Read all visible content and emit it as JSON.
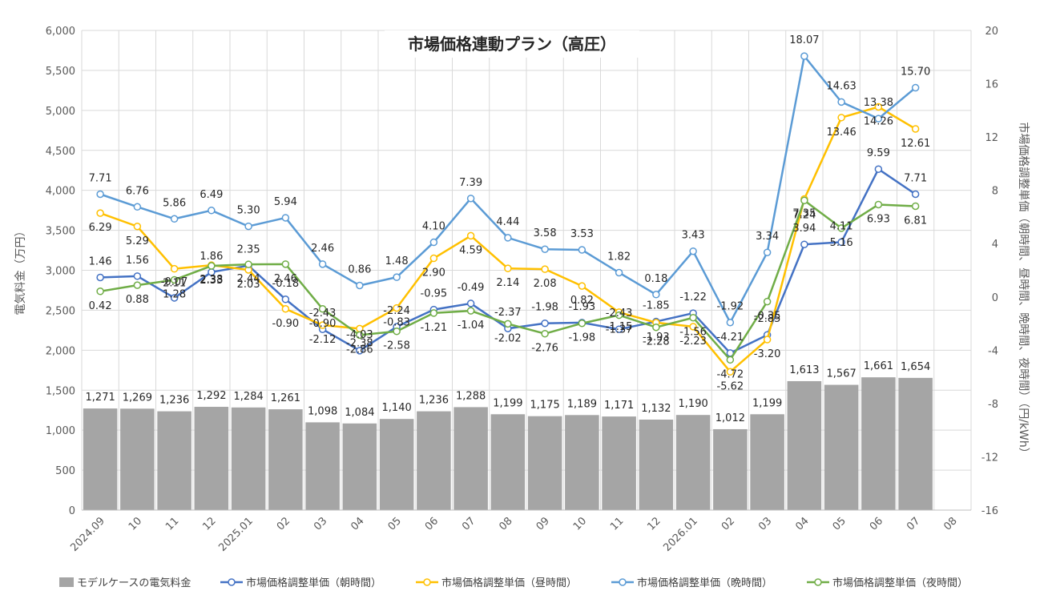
{
  "chart_data": {
    "type": "bar+line",
    "title": "市場価格連動プラン（高圧）",
    "y_left_label": "電気料金（万円）",
    "y_right_label": "市場価格調整単価（朝時間、昼時間、晩時間、夜時間）（円/kWh）",
    "y_left_ticks": [
      "0",
      "500",
      "1,000",
      "1,500",
      "2,000",
      "2,500",
      "3,000",
      "3,500",
      "4,000",
      "4,500",
      "5,000",
      "5,500",
      "6,000"
    ],
    "y_right_ticks": [
      "-16",
      "-12",
      "-8",
      "-4",
      "0",
      "4",
      "8",
      "12",
      "16",
      "20"
    ],
    "ylim_left": [
      0,
      6000
    ],
    "ylim_right": [
      -16,
      20
    ],
    "categories": [
      "2024.09",
      "10",
      "11",
      "12",
      "2025.01",
      "02",
      "03",
      "04",
      "05",
      "06",
      "07",
      "08",
      "09",
      "10",
      "11",
      "12",
      "2026.01",
      "02",
      "03",
      "04",
      "05",
      "06",
      "07",
      "08"
    ],
    "bar_series": {
      "name": "モデルケースの電気料金",
      "color": "#a5a5a5",
      "values": [
        1271,
        1269,
        1236,
        1292,
        1284,
        1261,
        1098,
        1084,
        1140,
        1236,
        1288,
        1199,
        1175,
        1189,
        1171,
        1132,
        1190,
        1012,
        1199,
        1613,
        1567,
        1661,
        1654
      ],
      "labels": [
        "1,271",
        "1,269",
        "1,236",
        "1,292",
        "1,284",
        "1,261",
        "1,098",
        "1,084",
        "1,140",
        "1,236",
        "1,288",
        "1,199",
        "1,175",
        "1,189",
        "1,171",
        "1,132",
        "1,190",
        "1,012",
        "1,199",
        "1,613",
        "1,567",
        "1,661",
        "1,654"
      ]
    },
    "line_series": [
      {
        "name": "市場価格調整単価（朝時間）",
        "color": "#4472c4",
        "values": [
          1.46,
          1.56,
          -0.07,
          1.86,
          2.35,
          -0.18,
          -2.43,
          -4.03,
          -2.24,
          -0.95,
          -0.49,
          -2.37,
          -1.98,
          -1.93,
          -2.43,
          -1.85,
          -1.22,
          -4.21,
          -2.85,
          3.94,
          4.11,
          9.59,
          7.71
        ],
        "labels": [
          "1.46",
          "1.56",
          "-0.07",
          "1.86",
          "2.35",
          "-0.18",
          "-2.43",
          "-4.03",
          "-2.24",
          "-0.95",
          "-0.49",
          "-2.37",
          "-1.98",
          "-1.93",
          "-2.43",
          "-1.85",
          "-1.22",
          "-4.21",
          "-2.85",
          "3.94",
          "4.11",
          "9.59",
          "7.71"
        ]
      },
      {
        "name": "市場価格調整単価（昼時間）",
        "color": "#ffc000",
        "values": [
          6.29,
          5.29,
          2.11,
          2.38,
          2.03,
          -0.9,
          -2.12,
          -2.38,
          -0.83,
          2.9,
          4.59,
          2.14,
          2.08,
          0.82,
          -1.15,
          -1.93,
          -2.23,
          -5.62,
          -3.2,
          7.35,
          13.46,
          14.26,
          12.61
        ],
        "labels": [
          "6.29",
          "5.29",
          "2.11",
          "2.38",
          "2.03",
          "-0.90",
          "-2.12",
          "-2.38",
          "-0.83",
          "2.90",
          "4.59",
          "2.14",
          "2.08",
          "0.82",
          "-1.15",
          "-1.93",
          "-2.23",
          "-5.62",
          "-3.20",
          "7.35",
          "13.46",
          "14.26",
          "12.61"
        ]
      },
      {
        "name": "市場価格調整単価（晩時間）",
        "color": "#5b9bd5",
        "values": [
          7.71,
          6.76,
          5.86,
          6.49,
          5.3,
          5.94,
          2.46,
          0.86,
          1.48,
          4.1,
          7.39,
          4.44,
          3.58,
          3.53,
          1.82,
          0.18,
          3.43,
          -1.92,
          3.34,
          18.07,
          14.63,
          13.38,
          15.7
        ],
        "labels": [
          "7.71",
          "6.76",
          "5.86",
          "6.49",
          "5.30",
          "5.94",
          "2.46",
          "0.86",
          "1.48",
          "4.10",
          "7.39",
          "4.44",
          "3.58",
          "3.53",
          "1.82",
          "0.18",
          "3.43",
          "-1.92",
          "3.34",
          "18.07",
          "14.63",
          "13.38",
          "15.70"
        ]
      },
      {
        "name": "市場価格調整単価（夜時間）",
        "color": "#70ad47",
        "values": [
          0.42,
          0.88,
          1.28,
          2.33,
          2.44,
          2.46,
          -0.9,
          -2.86,
          -2.58,
          -1.21,
          -1.04,
          -2.02,
          -2.76,
          -1.98,
          -1.37,
          -2.28,
          -1.56,
          -4.72,
          -0.35,
          7.24,
          5.16,
          6.93,
          6.81
        ],
        "labels": [
          "0.42",
          "0.88",
          "1.28",
          "2.33",
          "2.44",
          "2.46",
          "-0.90",
          "-2.86",
          "-2.58",
          "-1.21",
          "-1.04",
          "-2.02",
          "-2.76",
          "-1.98",
          "-1.37",
          "-2.28",
          "-1.56",
          "-4.72",
          "-0.35",
          "7.24",
          "5.16",
          "6.93",
          "6.81"
        ]
      }
    ],
    "legend_position": "bottom",
    "grid": true
  }
}
